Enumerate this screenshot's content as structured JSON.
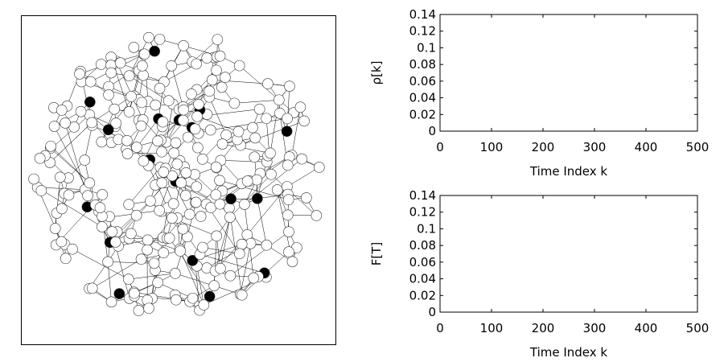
{
  "colors": {
    "background": "#ffffff",
    "axis": "#000000",
    "edge": "#000000",
    "node_fill": "#ffffff",
    "node_highlight": "#000000"
  },
  "chart_data": [
    {
      "type": "network",
      "node_count": 300,
      "highlighted_node_count": 18,
      "grid": false
    },
    {
      "type": "line",
      "series": [],
      "title": "",
      "xlabel": "Time Index k",
      "ylabel": "ρ[k]",
      "xlim": [
        0,
        500
      ],
      "ylim": [
        0,
        0.14
      ],
      "xticks": [
        "0",
        "100",
        "200",
        "300",
        "400",
        "500"
      ],
      "yticks": [
        "0",
        "0.02",
        "0.04",
        "0.06",
        "0.08",
        "0.1",
        "0.12",
        "0.14"
      ],
      "grid": false
    },
    {
      "type": "line",
      "series": [],
      "title": "",
      "xlabel": "Time Index k",
      "ylabel": "F[T]",
      "xlim": [
        0,
        500
      ],
      "ylim": [
        0,
        0.14
      ],
      "xticks": [
        "0",
        "100",
        "200",
        "300",
        "400",
        "500"
      ],
      "yticks": [
        "0",
        "0.02",
        "0.04",
        "0.06",
        "0.08",
        "0.1",
        "0.12",
        "0.14"
      ],
      "grid": false
    }
  ]
}
